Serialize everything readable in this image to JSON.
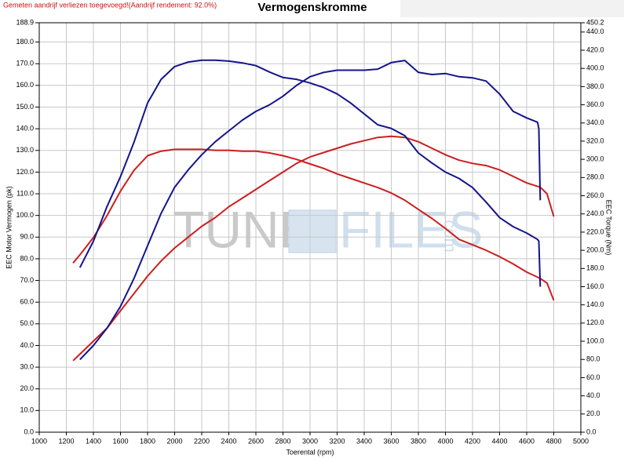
{
  "chart_data": {
    "type": "line",
    "title": "Vermogenskromme",
    "note": "Gemeten aandrijf verliezen toegevoegd!(Aandrijf rendement: 92.0%)",
    "ylabel": "EEC Motor Vermogen (pk)",
    "y2label": "EEC Torque (Nm)",
    "xlabel": "Toerental (rpm)",
    "watermark": [
      "TUNE",
      "FILES",
      ".com"
    ],
    "grid": true,
    "xlim": [
      1000,
      5000
    ],
    "xticks": [
      1000,
      1200,
      1400,
      1600,
      1800,
      2000,
      2200,
      2400,
      2600,
      2800,
      3000,
      3200,
      3400,
      3600,
      3800,
      4000,
      4200,
      4400,
      4600,
      4800,
      5000
    ],
    "ylim": [
      0,
      188.9
    ],
    "yticks": [
      {
        "value": 0,
        "label": "0.0"
      },
      {
        "value": 10,
        "label": "10.0"
      },
      {
        "value": 20,
        "label": "20.0"
      },
      {
        "value": 30,
        "label": "30.0"
      },
      {
        "value": 40,
        "label": "40.0"
      },
      {
        "value": 50,
        "label": "50.0"
      },
      {
        "value": 60,
        "label": "60.0"
      },
      {
        "value": 70,
        "label": "70.0"
      },
      {
        "value": 80,
        "label": "80.0"
      },
      {
        "value": 90,
        "label": "90.0"
      },
      {
        "value": 100,
        "label": "100.0"
      },
      {
        "value": 110,
        "label": "110.0"
      },
      {
        "value": 120,
        "label": "120.0"
      },
      {
        "value": 130,
        "label": "130.0"
      },
      {
        "value": 140,
        "label": "140.0"
      },
      {
        "value": 150,
        "label": "150.0"
      },
      {
        "value": 160,
        "label": "160.0"
      },
      {
        "value": 170,
        "label": "170.0"
      },
      {
        "value": 180,
        "label": "180.0"
      },
      188.9
    ],
    "y2lim": [
      0,
      450.2
    ],
    "y2ticks": [
      {
        "value": 0,
        "label": "0.0"
      },
      {
        "value": 20,
        "label": "20.0"
      },
      {
        "value": 40,
        "label": "40.0"
      },
      {
        "value": 60,
        "label": "60.0"
      },
      {
        "value": 80,
        "label": "80.0"
      },
      {
        "value": 100,
        "label": "100.0"
      },
      {
        "value": 120,
        "label": "120.0"
      },
      {
        "value": 140,
        "label": "140.0"
      },
      {
        "value": 160,
        "label": "160.0"
      },
      {
        "value": 180,
        "label": "180.0"
      },
      {
        "value": 200,
        "label": "200.0"
      },
      {
        "value": 220,
        "label": "220.0"
      },
      {
        "value": 240,
        "label": "240.0"
      },
      {
        "value": 260,
        "label": "260.0"
      },
      {
        "value": 280,
        "label": "280.0"
      },
      {
        "value": 300,
        "label": "300.0"
      },
      {
        "value": 320,
        "label": "320.0"
      },
      {
        "value": 340,
        "label": "340.0"
      },
      {
        "value": 360,
        "label": "360.0"
      },
      {
        "value": 380,
        "label": "380.0"
      },
      {
        "value": 400,
        "label": "400.0"
      },
      {
        "value": 420,
        "label": "420.0"
      },
      {
        "value": 440,
        "label": "440.0"
      },
      450.2
    ],
    "series": [
      {
        "color": "#cc1f1f",
        "axis": "y",
        "x": [
          1250,
          1300,
          1400,
          1500,
          1600,
          1700,
          1800,
          1900,
          2000,
          2100,
          2200,
          2300,
          2400,
          2500,
          2600,
          2700,
          2800,
          2900,
          3000,
          3100,
          3200,
          3300,
          3400,
          3500,
          3600,
          3700,
          3800,
          3900,
          4000,
          4100,
          4200,
          4300,
          4400,
          4500,
          4600,
          4700,
          4750,
          4800
        ],
        "values": [
          33,
          36,
          42,
          48,
          56,
          64,
          72,
          79,
          85,
          90,
          95,
          99,
          104,
          108,
          112,
          116,
          120,
          124,
          127,
          129,
          131,
          133,
          134.5,
          136,
          136.5,
          136,
          134,
          131,
          128,
          125.5,
          124,
          123,
          121,
          118,
          115,
          113,
          110,
          99.5
        ]
      },
      {
        "color": "#cc1f1f",
        "axis": "y2",
        "x": [
          1250,
          1300,
          1400,
          1500,
          1600,
          1700,
          1800,
          1900,
          2000,
          2100,
          2200,
          2300,
          2400,
          2500,
          2600,
          2700,
          2800,
          2900,
          3000,
          3100,
          3200,
          3300,
          3400,
          3500,
          3600,
          3700,
          3800,
          3900,
          4000,
          4100,
          4200,
          4300,
          4400,
          4500,
          4600,
          4700,
          4750,
          4800
        ],
        "values": [
          186,
          195,
          214,
          238,
          265,
          288,
          304,
          309,
          311,
          311,
          311,
          310,
          310,
          309,
          309,
          307,
          304,
          300,
          295,
          290,
          284,
          279,
          274,
          269,
          263,
          255,
          245,
          235,
          224,
          212,
          206,
          200,
          193,
          185,
          176,
          169,
          164,
          145
        ]
      },
      {
        "color": "#14148c",
        "axis": "y",
        "x": [
          1300,
          1400,
          1500,
          1600,
          1700,
          1800,
          1900,
          2000,
          2100,
          2200,
          2300,
          2400,
          2500,
          2600,
          2700,
          2800,
          2900,
          3000,
          3100,
          3200,
          3300,
          3400,
          3500,
          3600,
          3700,
          3800,
          3900,
          4000,
          4100,
          4200,
          4300,
          4400,
          4500,
          4600,
          4680,
          4690,
          4700
        ],
        "values": [
          33.5,
          40,
          48,
          58,
          71,
          86,
          101,
          113,
          121,
          128,
          134,
          139,
          144,
          148,
          151,
          155,
          160,
          164,
          166,
          167,
          167,
          167,
          167.5,
          170.5,
          171.5,
          166,
          165,
          165.5,
          164,
          163.5,
          162,
          156,
          148,
          145,
          143,
          140,
          107
        ]
      },
      {
        "color": "#14148c",
        "axis": "y2",
        "x": [
          1300,
          1400,
          1500,
          1600,
          1700,
          1800,
          1900,
          2000,
          2100,
          2200,
          2300,
          2400,
          2500,
          2600,
          2700,
          2800,
          2900,
          3000,
          3100,
          3200,
          3300,
          3400,
          3500,
          3600,
          3700,
          3800,
          3900,
          4000,
          4100,
          4200,
          4300,
          4400,
          4500,
          4600,
          4680,
          4690,
          4700
        ],
        "values": [
          181,
          210,
          248,
          281,
          319,
          362,
          388,
          402,
          407,
          409,
          409,
          408,
          406,
          403,
          396,
          390,
          388,
          384,
          379,
          372,
          362,
          350,
          338,
          334,
          326,
          307,
          296,
          286,
          279,
          269,
          253,
          236,
          226,
          219,
          212,
          210,
          160
        ]
      }
    ]
  }
}
